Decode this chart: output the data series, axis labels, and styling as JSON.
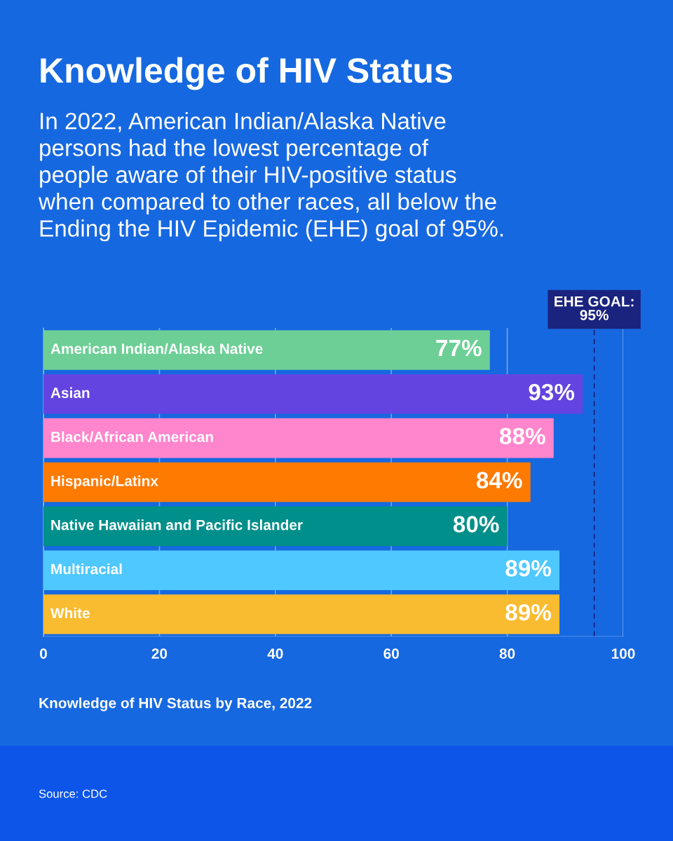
{
  "chart_data": {
    "type": "bar",
    "orientation": "horizontal",
    "title": "Knowledge of HIV Status",
    "subtitle": "In 2022, American Indian/Alaska Native\npersons had the lowest percentage of\npeople aware of their HIV-positive status\nwhen compared to other races, all below the\nEnding the HIV Epidemic (EHE) goal of 95%.",
    "tick_labels": "x",
    "categories": [
      "American Indian/Alaska Native",
      "Asian",
      "Black/African American",
      "Hispanic/Latinx",
      "Native Hawaiian and Pacific Islander",
      "Multiracial",
      "White"
    ],
    "values": [
      77,
      93,
      88,
      84,
      80,
      89,
      89
    ],
    "colors": [
      "#6dcf96",
      "#6444e0",
      "#ff85cc",
      "#ff7a00",
      "#008f8a",
      "#4fc8ff",
      "#f9bb30"
    ],
    "value_labels": [
      "77%",
      "93%",
      "88%",
      "84%",
      "80%",
      "89%",
      "89%"
    ],
    "xlim": [
      0,
      100
    ],
    "xticks": [
      0,
      20,
      40,
      60,
      80,
      100
    ],
    "grid": "x",
    "ref_lines": [
      {
        "axis": "x",
        "value": 95,
        "label": "EHE GOAL:\n95%",
        "color": "#1a237e",
        "line_style": "dashed"
      }
    ],
    "annotations": [
      "Knowledge of HIV Status by Race, 2022",
      "Source: CDC"
    ]
  }
}
